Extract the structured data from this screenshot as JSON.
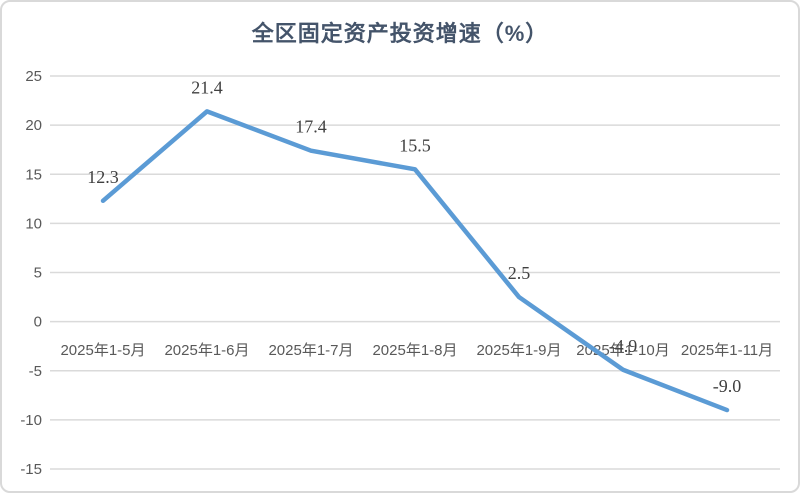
{
  "chart": {
    "colors": {
      "line": "#5B9BD5",
      "title": "#44546A",
      "grid": "#DADADA",
      "tick": "#595959",
      "data_label": "#404040",
      "border": "#D9D9D9"
    }
  },
  "chart_data": {
    "type": "line",
    "title": "全区固定资产投资增速（%）",
    "categories": [
      "2025年1-5月",
      "2025年1-6月",
      "2025年1-7月",
      "2025年1-8月",
      "2025年1-9月",
      "2025年1-10月",
      "2025年1-11月"
    ],
    "series": [
      {
        "name": "全区固定资产投资增速",
        "values": [
          12.3,
          21.4,
          17.4,
          15.5,
          2.5,
          -4.9,
          -9.0
        ],
        "data_labels": [
          "12.3",
          "21.4",
          "17.4",
          "15.5",
          "2.5",
          "-4.9",
          "-9.0"
        ]
      }
    ],
    "xlabel": "",
    "ylabel": "",
    "ylim": [
      -15,
      25
    ],
    "ytick_step": 5,
    "yticks": [
      25,
      20,
      15,
      10,
      5,
      0,
      -5,
      -10,
      -15
    ],
    "grid": true,
    "legend": "none",
    "data_label_position": "above"
  }
}
